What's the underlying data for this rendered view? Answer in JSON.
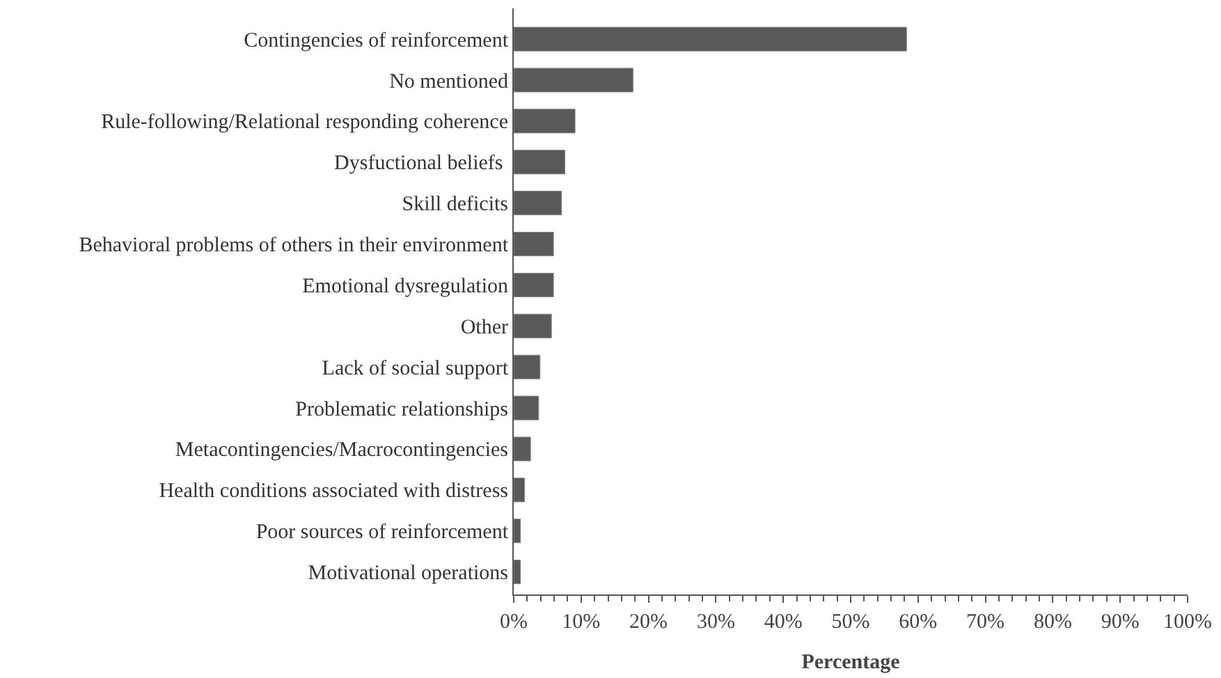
{
  "chart_data": {
    "type": "bar",
    "orientation": "horizontal",
    "xlabel": "Percentage",
    "categories": [
      "Contingencies of reinforcement",
      "No mentioned",
      "Rule-following/Relational responding coherence",
      "Dysfuctional beliefs ",
      "Skill deficits",
      "Behavioral problems of others in their environment",
      "Emotional dysregulation",
      "Other",
      "Lack of social support",
      "Problematic relationships",
      "Metacontingencies/Macrocontingencies",
      "Health conditions associated with distress",
      "Poor sources of reinforcement",
      "Motivational operations"
    ],
    "values": [
      58.3,
      17.7,
      9.1,
      7.6,
      7.1,
      5.9,
      5.9,
      5.6,
      3.9,
      3.7,
      2.5,
      1.6,
      1.0,
      1.0
    ],
    "color": "#595959",
    "xlim": [
      0,
      100
    ],
    "xticks": [
      {
        "value": 0,
        "label": "0%"
      },
      {
        "value": 10,
        "label": "10%"
      },
      {
        "value": 20,
        "label": "20%"
      },
      {
        "value": 30,
        "label": "30%"
      },
      {
        "value": 40,
        "label": "40%"
      },
      {
        "value": 50,
        "label": "50%"
      },
      {
        "value": 60,
        "label": "60%"
      },
      {
        "value": 70,
        "label": "70%"
      },
      {
        "value": 80,
        "label": "80%"
      },
      {
        "value": 90,
        "label": "90%"
      },
      {
        "value": 100,
        "label": "100%"
      }
    ]
  }
}
